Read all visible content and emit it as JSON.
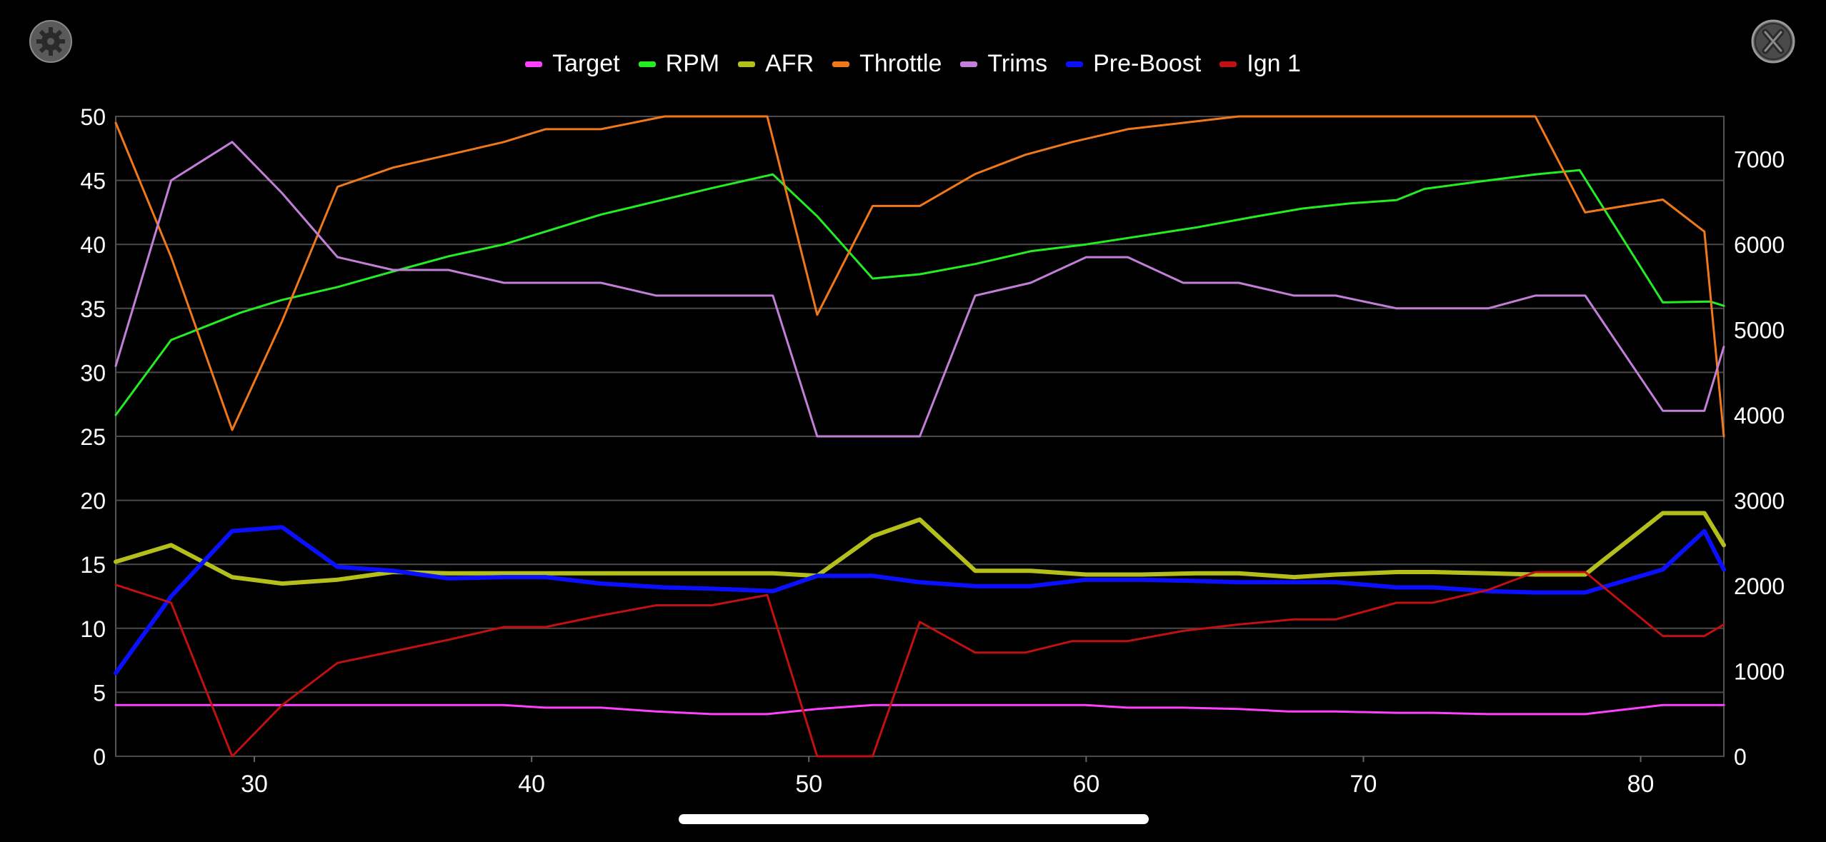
{
  "toolbar": {
    "settings_icon": "gear-icon",
    "close_icon": "close-x-icon"
  },
  "chart_data": {
    "type": "line",
    "xlim": [
      25,
      83
    ],
    "ylim_left": [
      0,
      50
    ],
    "ylim_right": [
      0,
      7500
    ],
    "x_ticks": [
      30,
      40,
      50,
      60,
      70,
      80
    ],
    "y_ticks_left": [
      0,
      5,
      10,
      15,
      20,
      25,
      30,
      35,
      40,
      45,
      50
    ],
    "y_ticks_right": [
      0,
      1000,
      2000,
      3000,
      4000,
      5000,
      6000,
      7000
    ],
    "grid": true,
    "legend_position": "top",
    "series": [
      {
        "name": "Target",
        "color": "#ff40ff",
        "axis": "left",
        "width": 3,
        "points": [
          [
            25,
            4
          ],
          [
            29.3,
            4
          ],
          [
            35,
            4
          ],
          [
            39,
            4
          ],
          [
            40.5,
            3.8
          ],
          [
            42.5,
            3.8
          ],
          [
            44.5,
            3.5
          ],
          [
            46.5,
            3.3
          ],
          [
            48.5,
            3.3
          ],
          [
            50.3,
            3.7
          ],
          [
            52.3,
            4
          ],
          [
            54,
            4
          ],
          [
            60,
            4
          ],
          [
            61.5,
            3.8
          ],
          [
            63.5,
            3.8
          ],
          [
            65.5,
            3.7
          ],
          [
            67.3,
            3.5
          ],
          [
            69,
            3.5
          ],
          [
            71.2,
            3.4
          ],
          [
            72.5,
            3.4
          ],
          [
            74.5,
            3.3
          ],
          [
            76.2,
            3.3
          ],
          [
            78,
            3.3
          ],
          [
            80.8,
            4
          ],
          [
            83,
            4
          ]
        ]
      },
      {
        "name": "RPM",
        "color": "#22ee22",
        "axis": "right",
        "width": 3,
        "points": [
          [
            25,
            4000
          ],
          [
            27,
            4880
          ],
          [
            29.5,
            5200
          ],
          [
            31,
            5350
          ],
          [
            33,
            5500
          ],
          [
            35.2,
            5700
          ],
          [
            37,
            5860
          ],
          [
            39,
            6000
          ],
          [
            40.8,
            6180
          ],
          [
            42.5,
            6350
          ],
          [
            44.7,
            6520
          ],
          [
            46.5,
            6660
          ],
          [
            48.7,
            6820
          ],
          [
            50.3,
            6330
          ],
          [
            52.3,
            5600
          ],
          [
            54,
            5650
          ],
          [
            56,
            5770
          ],
          [
            58,
            5920
          ],
          [
            60,
            6000
          ],
          [
            62,
            6100
          ],
          [
            64,
            6200
          ],
          [
            66,
            6320
          ],
          [
            67.8,
            6420
          ],
          [
            69.5,
            6480
          ],
          [
            71.2,
            6520
          ],
          [
            72.2,
            6650
          ],
          [
            74.5,
            6750
          ],
          [
            76.2,
            6820
          ],
          [
            77.8,
            6870
          ],
          [
            80.8,
            5320
          ],
          [
            82.5,
            5330
          ],
          [
            83,
            5280
          ]
        ]
      },
      {
        "name": "AFR",
        "color": "#b5bf1c",
        "axis": "left",
        "width": 6,
        "points": [
          [
            25,
            15.2
          ],
          [
            27,
            16.5
          ],
          [
            29.2,
            14
          ],
          [
            31,
            13.5
          ],
          [
            33,
            13.8
          ],
          [
            35,
            14.4
          ],
          [
            37,
            14.3
          ],
          [
            39,
            14.3
          ],
          [
            48.7,
            14.3
          ],
          [
            50.3,
            14.1
          ],
          [
            52.3,
            17.2
          ],
          [
            54,
            18.5
          ],
          [
            56,
            14.5
          ],
          [
            58,
            14.5
          ],
          [
            60,
            14.2
          ],
          [
            62,
            14.2
          ],
          [
            64,
            14.3
          ],
          [
            65.5,
            14.3
          ],
          [
            67.5,
            14
          ],
          [
            69,
            14.2
          ],
          [
            71.2,
            14.4
          ],
          [
            72.5,
            14.4
          ],
          [
            74.5,
            14.3
          ],
          [
            76.2,
            14.2
          ],
          [
            78,
            14.2
          ],
          [
            80.8,
            19
          ],
          [
            82.3,
            19
          ],
          [
            83,
            16.5
          ]
        ]
      },
      {
        "name": "Throttle",
        "color": "#f07818",
        "axis": "left",
        "width": 3,
        "points": [
          [
            25,
            49.5
          ],
          [
            27,
            39
          ],
          [
            29.2,
            25.5
          ],
          [
            31,
            34
          ],
          [
            33,
            44.5
          ],
          [
            35,
            46
          ],
          [
            37,
            47
          ],
          [
            39,
            48
          ],
          [
            40.5,
            49
          ],
          [
            42.5,
            49
          ],
          [
            44.8,
            50
          ],
          [
            46.5,
            50
          ],
          [
            48.5,
            50
          ],
          [
            50.3,
            34.5
          ],
          [
            52.3,
            43
          ],
          [
            54,
            43
          ],
          [
            56,
            45.5
          ],
          [
            57.8,
            47
          ],
          [
            59.5,
            48
          ],
          [
            61.5,
            49
          ],
          [
            63.5,
            49.5
          ],
          [
            65.5,
            50
          ],
          [
            76.2,
            50
          ],
          [
            78,
            42.5
          ],
          [
            80.8,
            43.5
          ],
          [
            82.3,
            41
          ],
          [
            83,
            25
          ]
        ]
      },
      {
        "name": "Trims",
        "color": "#c37fd8",
        "axis": "left",
        "width": 3,
        "points": [
          [
            25,
            30.5
          ],
          [
            27,
            45
          ],
          [
            29.2,
            48
          ],
          [
            31,
            44
          ],
          [
            33,
            39
          ],
          [
            35,
            38
          ],
          [
            37,
            38
          ],
          [
            39,
            37
          ],
          [
            42.5,
            37
          ],
          [
            44.5,
            36
          ],
          [
            48.7,
            36
          ],
          [
            50.3,
            25
          ],
          [
            54,
            25
          ],
          [
            56,
            36
          ],
          [
            58,
            37
          ],
          [
            60,
            39
          ],
          [
            61.5,
            39
          ],
          [
            63.5,
            37
          ],
          [
            65.5,
            37
          ],
          [
            67.5,
            36
          ],
          [
            69,
            36
          ],
          [
            71.2,
            35
          ],
          [
            74.5,
            35
          ],
          [
            76.2,
            36
          ],
          [
            78,
            36
          ],
          [
            80.8,
            27
          ],
          [
            82.3,
            27
          ],
          [
            83,
            32
          ]
        ]
      },
      {
        "name": "Pre-Boost",
        "color": "#0a10ff",
        "axis": "left",
        "width": 6,
        "points": [
          [
            25,
            6.5
          ],
          [
            27,
            12.5
          ],
          [
            29.2,
            17.6
          ],
          [
            31,
            17.9
          ],
          [
            33,
            14.8
          ],
          [
            35,
            14.5
          ],
          [
            37,
            13.9
          ],
          [
            39,
            14
          ],
          [
            40.5,
            14
          ],
          [
            42.5,
            13.5
          ],
          [
            44.8,
            13.2
          ],
          [
            46.5,
            13.1
          ],
          [
            48.7,
            12.9
          ],
          [
            50.3,
            14.1
          ],
          [
            52.3,
            14.1
          ],
          [
            54,
            13.6
          ],
          [
            56,
            13.3
          ],
          [
            58,
            13.3
          ],
          [
            60,
            13.8
          ],
          [
            62,
            13.8
          ],
          [
            64,
            13.7
          ],
          [
            65.5,
            13.6
          ],
          [
            69,
            13.6
          ],
          [
            71.2,
            13.2
          ],
          [
            72.5,
            13.2
          ],
          [
            74.5,
            12.9
          ],
          [
            76.2,
            12.8
          ],
          [
            78,
            12.8
          ],
          [
            80.8,
            14.6
          ],
          [
            82.3,
            17.6
          ],
          [
            83,
            14.6
          ]
        ]
      },
      {
        "name": "Ign 1",
        "color": "#c01010",
        "axis": "left",
        "width": 3,
        "points": [
          [
            25,
            13.4
          ],
          [
            27,
            12
          ],
          [
            29.2,
            0
          ],
          [
            31,
            4
          ],
          [
            33,
            7.3
          ],
          [
            35,
            8.2
          ],
          [
            37,
            9.1
          ],
          [
            39,
            10.1
          ],
          [
            40.5,
            10.1
          ],
          [
            42.5,
            11
          ],
          [
            44.5,
            11.8
          ],
          [
            46.5,
            11.8
          ],
          [
            48.5,
            12.6
          ],
          [
            50.3,
            0
          ],
          [
            52.3,
            0
          ],
          [
            54,
            10.5
          ],
          [
            56,
            8.1
          ],
          [
            57.8,
            8.1
          ],
          [
            59.5,
            9
          ],
          [
            61.5,
            9
          ],
          [
            63.5,
            9.8
          ],
          [
            65.5,
            10.3
          ],
          [
            67.5,
            10.7
          ],
          [
            69,
            10.7
          ],
          [
            71.2,
            12
          ],
          [
            72.5,
            12
          ],
          [
            74.5,
            13
          ],
          [
            76.2,
            14.4
          ],
          [
            78,
            14.4
          ],
          [
            80.8,
            9.4
          ],
          [
            82.3,
            9.4
          ],
          [
            83,
            10.3
          ]
        ]
      }
    ]
  }
}
